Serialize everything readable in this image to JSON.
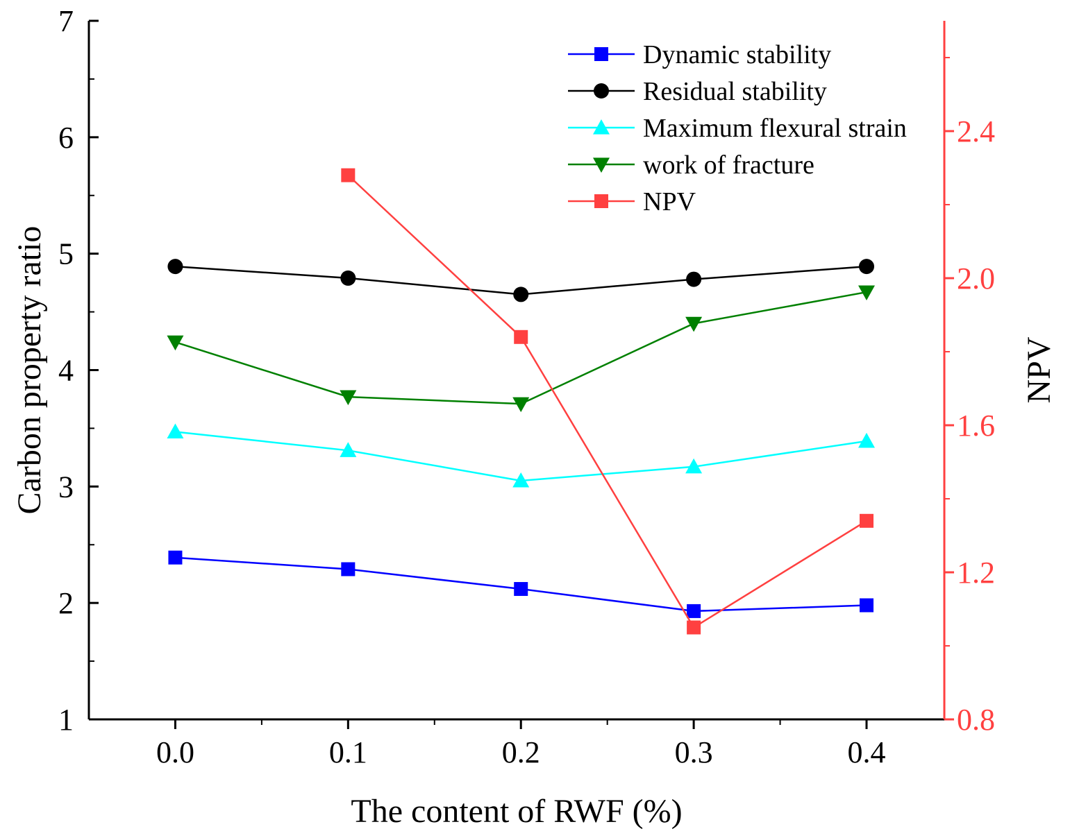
{
  "chart_data": {
    "type": "line",
    "xlabel": "The content of RWF (%)",
    "ylabel": "Carbon property ratio",
    "y2label": "NPV",
    "x_ticks": [
      "0.0",
      "0.1",
      "0.2",
      "0.3",
      "0.4"
    ],
    "y_ticks": [
      "1",
      "2",
      "3",
      "4",
      "5",
      "6",
      "7"
    ],
    "y2_ticks": [
      "0.8",
      "1.2",
      "1.6",
      "2.0",
      "2.4"
    ],
    "xlim": [
      -0.05,
      0.445
    ],
    "ylim": [
      1,
      7
    ],
    "y2lim": [
      0.8,
      2.7
    ],
    "legend_position": "top-right",
    "series": [
      {
        "name": "Dynamic stability",
        "axis": "left",
        "marker": "square",
        "color": "#0000ff",
        "x": [
          0.0,
          0.1,
          0.2,
          0.3,
          0.4
        ],
        "values": [
          2.39,
          2.29,
          2.12,
          1.93,
          1.98
        ]
      },
      {
        "name": "Residual stability",
        "axis": "left",
        "marker": "circle",
        "color": "#000000",
        "x": [
          0.0,
          0.1,
          0.2,
          0.3,
          0.4
        ],
        "values": [
          4.89,
          4.79,
          4.65,
          4.78,
          4.89
        ]
      },
      {
        "name": "Maximum flexural strain",
        "axis": "left",
        "marker": "triangle-up",
        "color": "#00ffff",
        "x": [
          0.0,
          0.1,
          0.2,
          0.3,
          0.4
        ],
        "values": [
          3.47,
          3.31,
          3.05,
          3.17,
          3.39
        ]
      },
      {
        "name": "work of fracture",
        "axis": "left",
        "marker": "triangle-down",
        "color": "#008000",
        "x": [
          0.0,
          0.1,
          0.2,
          0.3,
          0.4
        ],
        "values": [
          4.24,
          3.77,
          3.71,
          4.4,
          4.67
        ]
      },
      {
        "name": "NPV",
        "axis": "right",
        "marker": "square",
        "color": "#ff4040",
        "x": [
          0.1,
          0.2,
          0.3,
          0.4
        ],
        "values": [
          2.28,
          1.84,
          1.05,
          1.34
        ]
      }
    ]
  }
}
